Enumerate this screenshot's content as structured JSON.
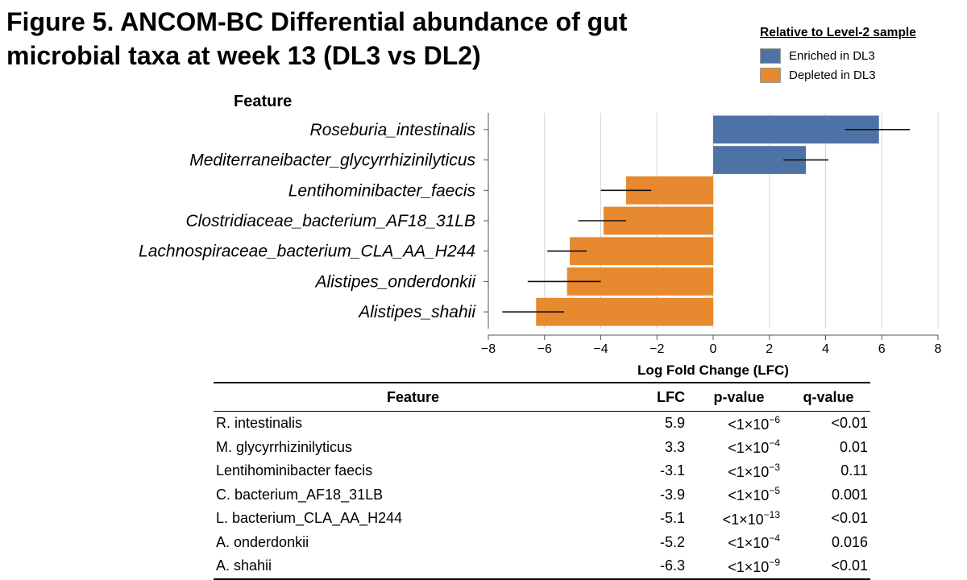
{
  "title": {
    "line1": "Figure 5. ANCOM-BC Differential abundance of gut",
    "line2": "microbial taxa at week 13 (DL3 vs DL2)"
  },
  "legend": {
    "title": "Relative to Level-2 sample",
    "items": [
      {
        "label": "Enriched in DL3",
        "color": "#4f72a6"
      },
      {
        "label": "Depleted in DL3",
        "color": "#e7892e"
      }
    ]
  },
  "chart_data": {
    "type": "bar",
    "orientation": "horizontal",
    "ylabel": "Feature",
    "xlabel": "Log Fold Change (LFC)",
    "xlim": [
      -8,
      8
    ],
    "xticks": [
      "−8",
      "−6",
      "−4",
      "−2",
      "0",
      "2",
      "4",
      "6",
      "8"
    ],
    "xtick_values": [
      -8,
      -6,
      -4,
      -2,
      0,
      2,
      4,
      6,
      8
    ],
    "grid": "vertical",
    "categories": [
      "Roseburia_intestinalis",
      "Mediterraneibacter_glycyrrhizinilyticus",
      "Lentihominibacter_faecis",
      "Clostridiaceae_bacterium_AF18_31LB",
      "Lachnospiraceae_bacterium_CLA_AA_H244",
      "Alistipes_onderdonkii",
      "Alistipes_shahii"
    ],
    "values": [
      5.9,
      3.3,
      -3.1,
      -3.9,
      -5.1,
      -5.2,
      -6.3
    ],
    "error_low": [
      4.7,
      2.5,
      -4.0,
      -4.8,
      -5.9,
      -6.6,
      -7.5
    ],
    "error_high": [
      7.0,
      4.1,
      -2.2,
      -3.1,
      -4.5,
      -4.0,
      -5.3
    ],
    "colors": {
      "positive": "#4f72a6",
      "negative": "#e7892e",
      "grid": "#d6d6d6",
      "axis": "#555555"
    }
  },
  "table": {
    "headers": [
      "Feature",
      "LFC",
      "p-value",
      "q-value"
    ],
    "rows": [
      {
        "feature": "R. intestinalis",
        "lfc": "5.9",
        "p_base": "<1×10",
        "p_exp": "−6",
        "q": "<0.01"
      },
      {
        "feature": "M. glycyrrhizinilyticus",
        "lfc": "3.3",
        "p_base": "<1×10",
        "p_exp": "−4",
        "q": "0.01"
      },
      {
        "feature": "Lentihominibacter faecis",
        "lfc": "-3.1",
        "p_base": "<1×10",
        "p_exp": "−3",
        "q": "0.11"
      },
      {
        "feature": "C. bacterium_AF18_31LB",
        "lfc": "-3.9",
        "p_base": "<1×10",
        "p_exp": "−5",
        "q": "0.001"
      },
      {
        "feature": "L. bacterium_CLA_AA_H244",
        "lfc": "-5.1",
        "p_base": "<1×10",
        "p_exp": "−13",
        "q": "<0.01"
      },
      {
        "feature": "A. onderdonkii",
        "lfc": "-5.2",
        "p_base": "<1×10",
        "p_exp": "−4",
        "q": "0.016"
      },
      {
        "feature": "A. shahii",
        "lfc": "-6.3",
        "p_base": "<1×10",
        "p_exp": "−9",
        "q": "<0.01"
      }
    ]
  }
}
